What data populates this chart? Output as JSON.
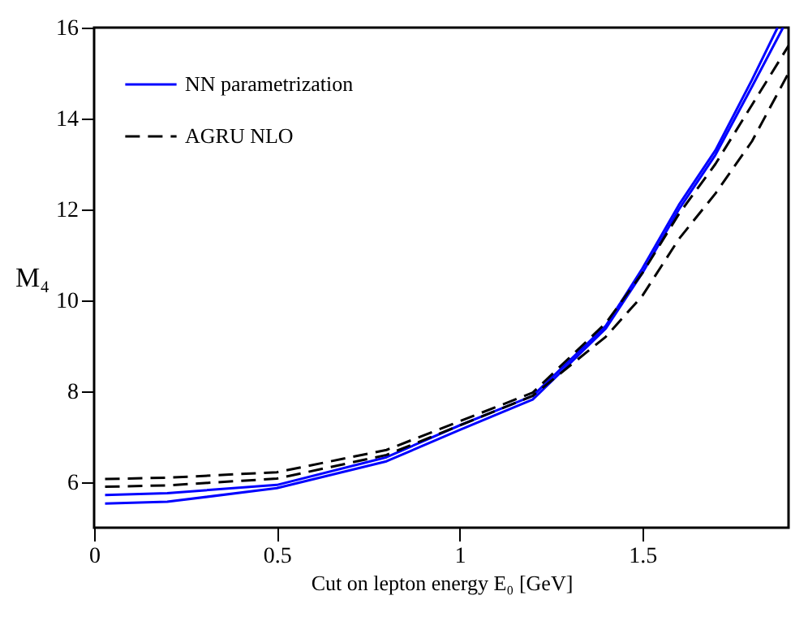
{
  "chart_data": {
    "type": "line",
    "xlabel": "Cut on lepton energy E₀ [GeV]",
    "ylabel": "M₄",
    "xlim": [
      0,
      1.9
    ],
    "ylim": [
      5,
      16
    ],
    "xticks": [
      0,
      0.5,
      1,
      1.5
    ],
    "yticks": [
      6,
      8,
      10,
      12,
      14,
      16
    ],
    "grid": false,
    "legend": "top left",
    "marker": "none",
    "series": [
      {
        "name": "NN parametrization",
        "color": "#0000ff",
        "line_style": "solid",
        "x": [
          0.03,
          0.2,
          0.5,
          0.8,
          1.0,
          1.2,
          1.4,
          1.5,
          1.6,
          1.7,
          1.8,
          1.87
        ],
        "values": [
          5.72,
          5.76,
          5.94,
          6.55,
          7.25,
          7.9,
          9.44,
          10.7,
          12.1,
          13.3,
          14.85,
          16
        ]
      },
      {
        "color": "#0000ff",
        "line_style": "solid",
        "x": [
          0.03,
          0.2,
          0.5,
          0.8,
          1.0,
          1.2,
          1.4,
          1.5,
          1.6,
          1.7,
          1.8,
          1.885
        ],
        "values": [
          5.53,
          5.57,
          5.87,
          6.46,
          7.15,
          7.82,
          9.38,
          10.6,
          12.0,
          13.2,
          14.7,
          16
        ]
      },
      {
        "name": "AGRU NLO",
        "color": "#000000",
        "line_style": "dashed",
        "x": [
          0.03,
          0.2,
          0.5,
          0.8,
          1.0,
          1.2,
          1.4,
          1.5,
          1.6,
          1.7,
          1.8,
          1.9
        ],
        "values": [
          6.07,
          6.1,
          6.22,
          6.71,
          7.34,
          7.97,
          9.5,
          10.6,
          11.9,
          13.0,
          14.3,
          15.6
        ]
      },
      {
        "color": "#000000",
        "line_style": "dashed",
        "x": [
          0.03,
          0.2,
          0.5,
          0.8,
          1.0,
          1.2,
          1.4,
          1.5,
          1.6,
          1.7,
          1.8,
          1.9
        ],
        "values": [
          5.9,
          5.93,
          6.08,
          6.6,
          7.25,
          7.9,
          9.2,
          10.1,
          11.35,
          12.35,
          13.5,
          15.0
        ]
      }
    ]
  }
}
